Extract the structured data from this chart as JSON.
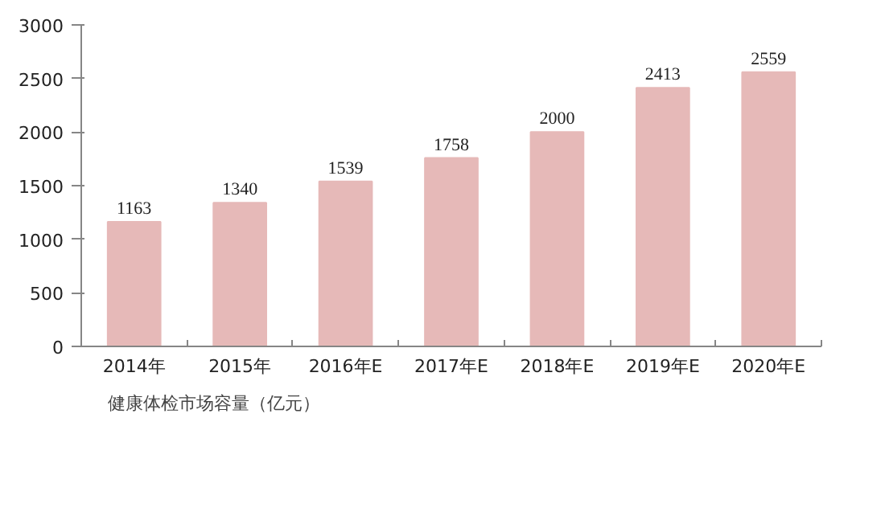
{
  "chart_data": {
    "type": "bar",
    "categories": [
      "2014年",
      "2015年",
      "2016年E",
      "2017年E",
      "2018年E",
      "2019年E",
      "2020年E"
    ],
    "series": [
      {
        "name": "健康体检市场容量（亿元）",
        "color": "#e6b9b8",
        "values": [
          1163,
          1340,
          1539,
          1758,
          2000,
          2413,
          2559
        ]
      }
    ],
    "ylim": [
      0,
      3000
    ],
    "yticks": [
      0,
      500,
      1000,
      1500,
      2000,
      2500,
      3000
    ],
    "data_labels": true,
    "grid": false,
    "legend": "bottom left"
  }
}
